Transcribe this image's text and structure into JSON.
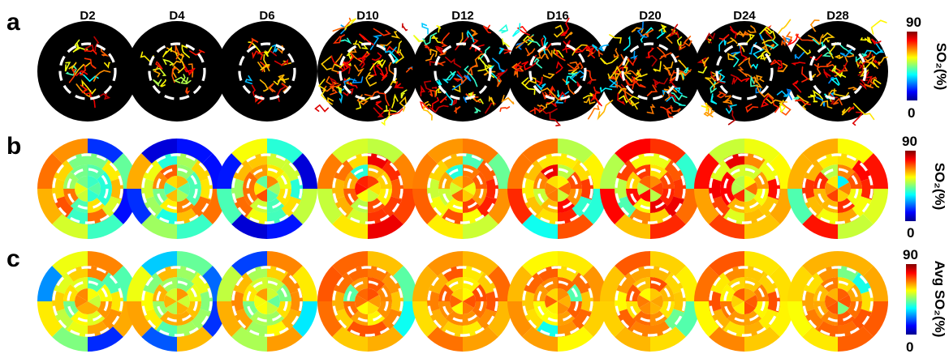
{
  "panels": [
    {
      "letter": "a",
      "kind": "vessels"
    },
    {
      "letter": "b",
      "kind": "segments"
    },
    {
      "letter": "c",
      "kind": "segments"
    }
  ],
  "days": [
    "D2",
    "D4",
    "D6",
    "D10",
    "D12",
    "D16",
    "D20",
    "D24",
    "D28"
  ],
  "colorbars": [
    {
      "max_label": "90",
      "min_label": "0",
      "title": "SO₂(%)"
    },
    {
      "max_label": "90",
      "min_label": "0",
      "title": "SO₂(%)"
    },
    {
      "max_label": "90",
      "min_label": "0",
      "title": "Avg SO₂(%)"
    }
  ],
  "colormap": "jet",
  "colors": {
    "disc_background": "#000000",
    "dashed_circle": "#ffffff"
  }
}
